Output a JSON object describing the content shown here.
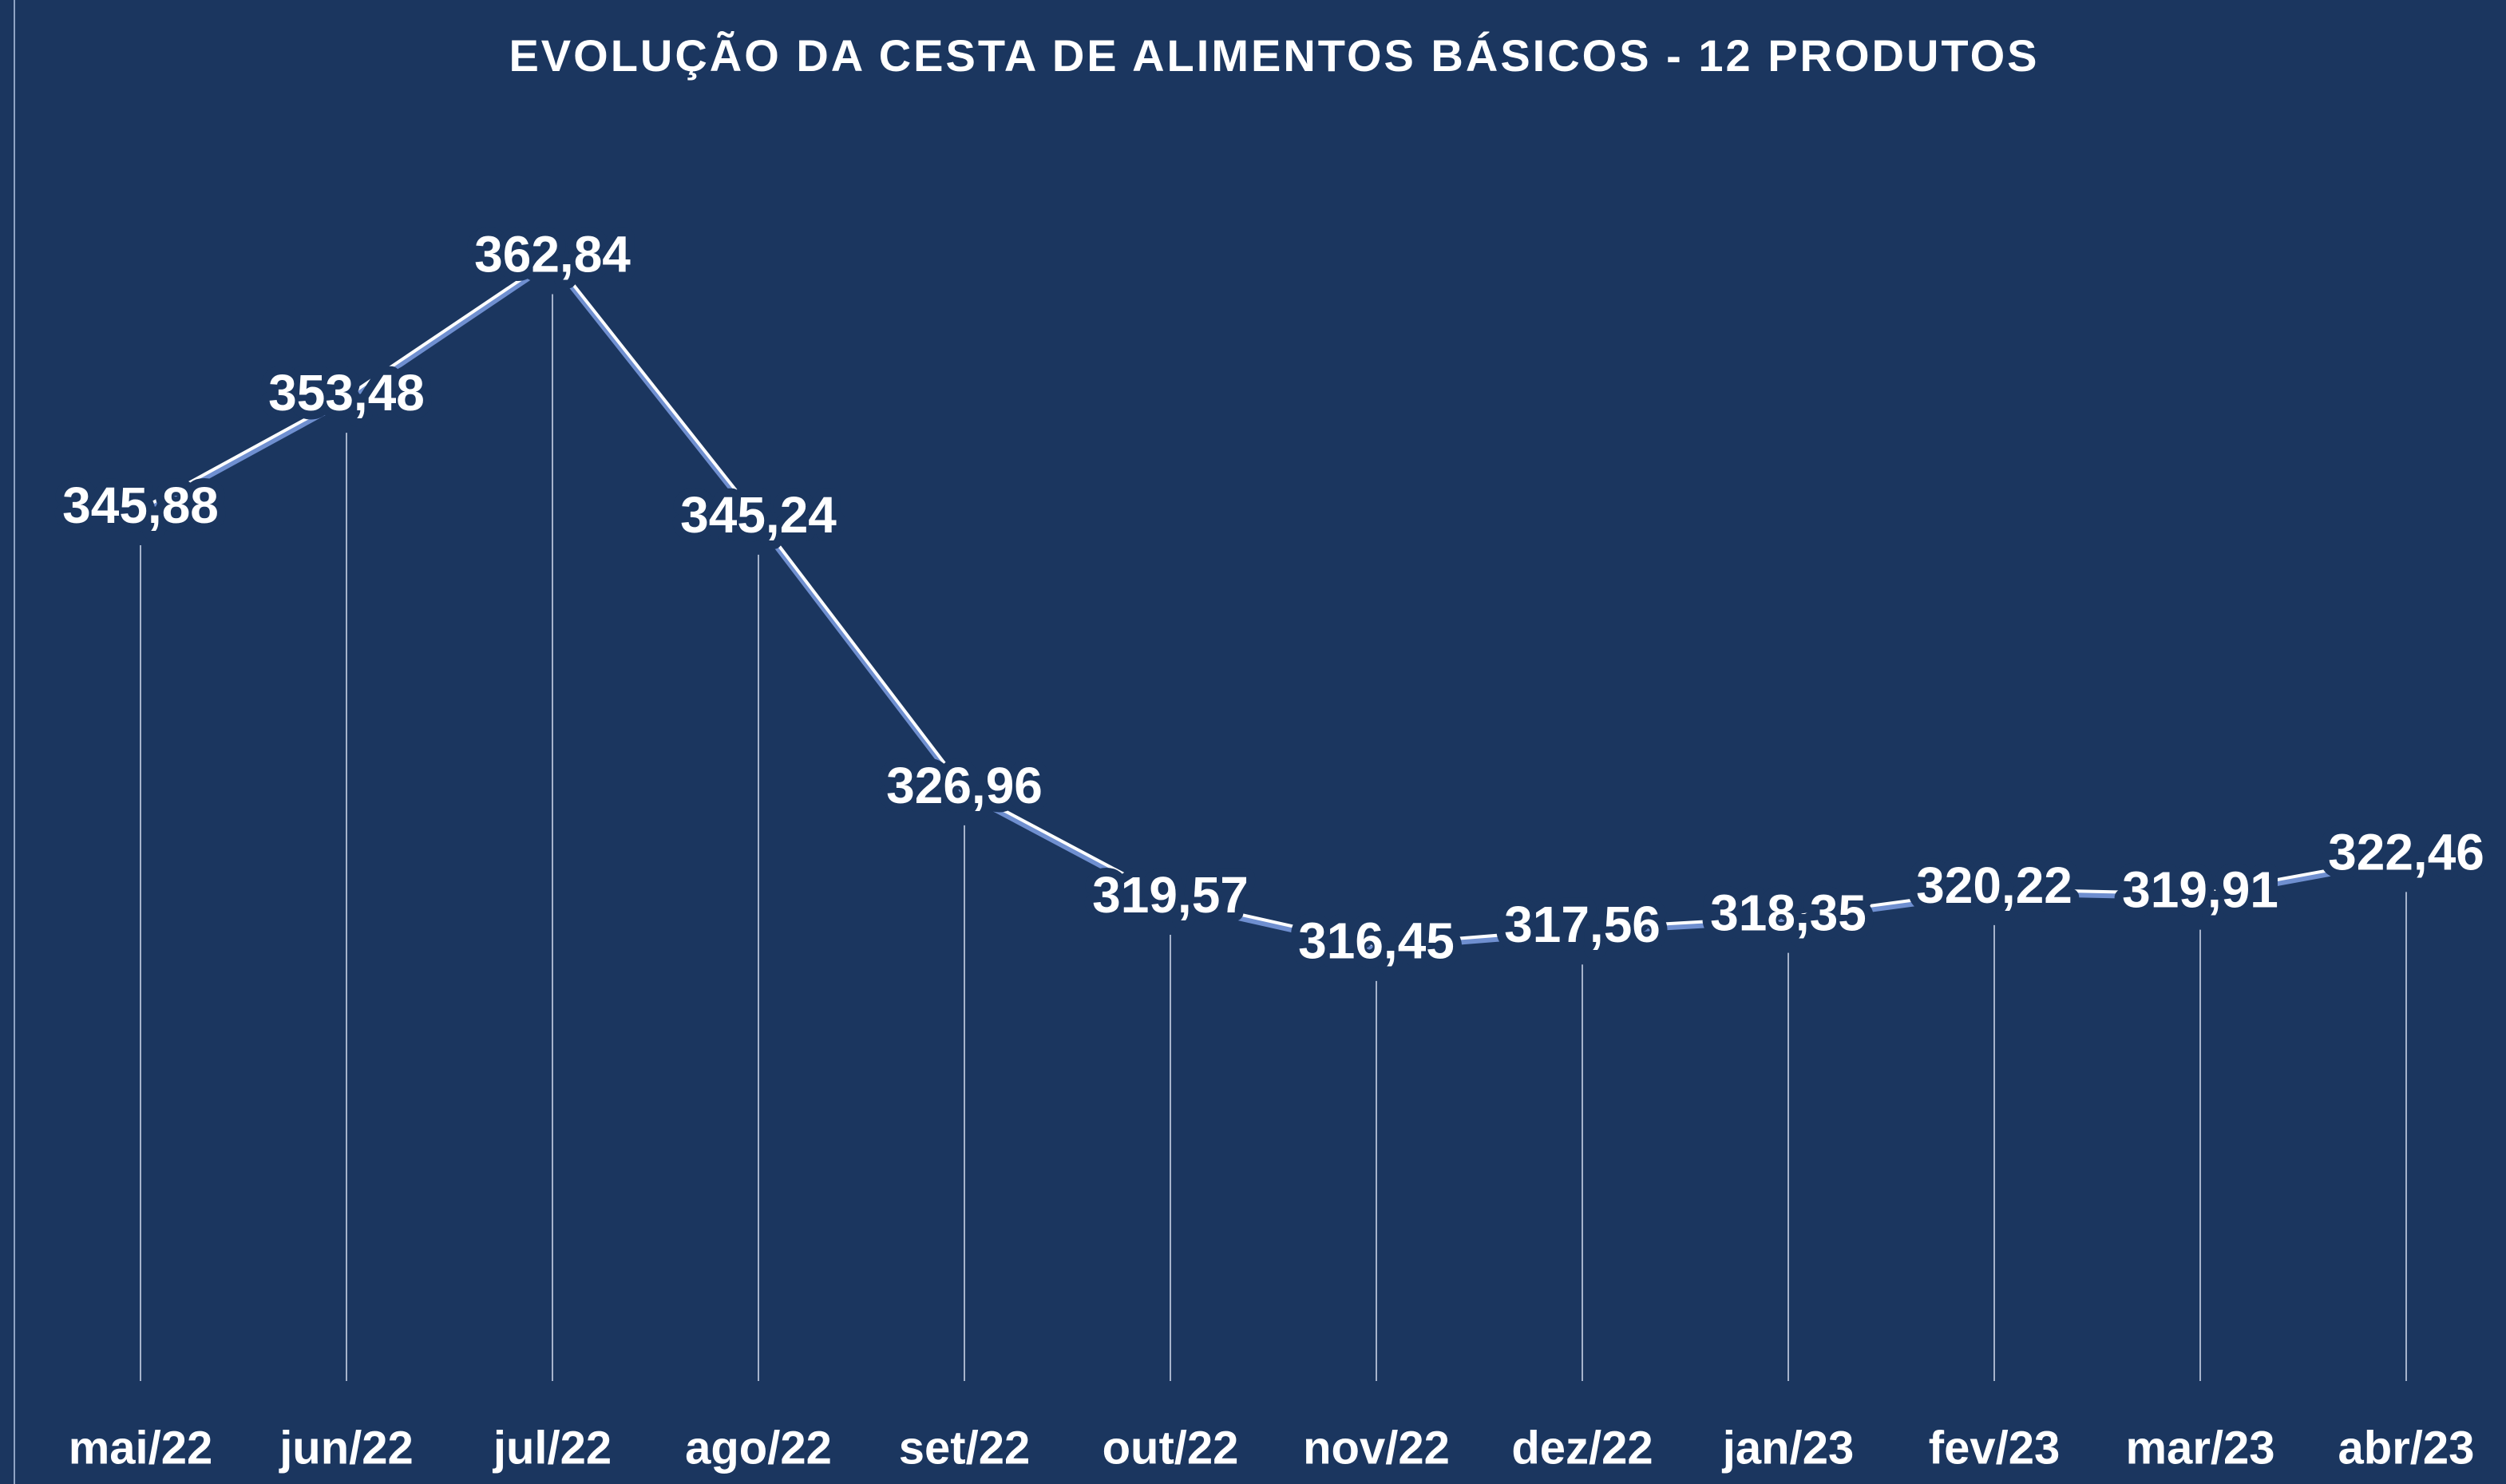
{
  "chart_data": {
    "type": "line",
    "title": "EVOLUÇÃO DA CESTA DE ALIMENTOS BÁSICOS - 12 PRODUTOS",
    "categories": [
      "mai/22",
      "jun/22",
      "jul/22",
      "ago/22",
      "set/22",
      "out/22",
      "nov/22",
      "dez/22",
      "jan/23",
      "fev/23",
      "mar/23",
      "abr/23"
    ],
    "values": [
      345.88,
      353.48,
      362.84,
      345.24,
      326.96,
      319.57,
      316.45,
      317.56,
      318.35,
      320.22,
      319.91,
      322.46
    ],
    "value_labels": [
      "345,88",
      "353,48",
      "362,84",
      "345,24",
      "326,96",
      "319,57",
      "316,45",
      "317,56",
      "318,35",
      "320,22",
      "319,91",
      "322,46"
    ],
    "color": "#ffffff",
    "ylim": [
      287,
      375
    ]
  }
}
